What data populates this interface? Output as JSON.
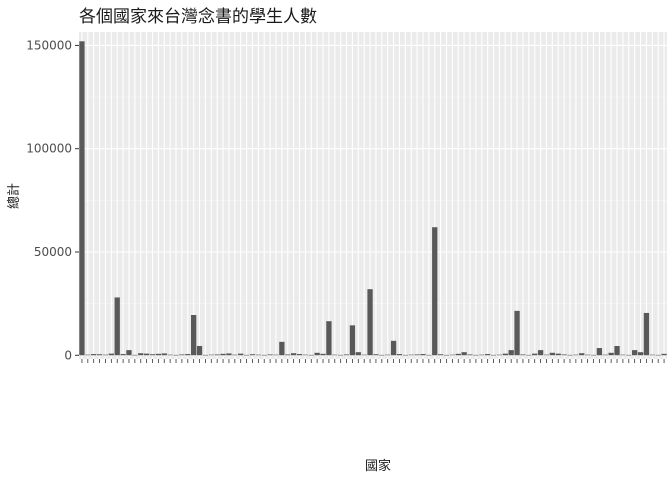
{
  "chart_data": {
    "type": "bar",
    "title": "各個國家來台灣念書的學生人數",
    "xlabel": "國家",
    "ylabel": "總計",
    "ylim": [
      -1800,
      156500
    ],
    "yticks": [
      0,
      50000,
      100000,
      150000
    ],
    "ytick_labels": [
      "0",
      "50000",
      "100000",
      "150000"
    ],
    "grid": true,
    "bar_color": "#595959",
    "panel_color": "#ebebeb",
    "values": [
      152000,
      300,
      600,
      500,
      300,
      800,
      28000,
      600,
      2500,
      200,
      1000,
      800,
      500,
      700,
      900,
      300,
      200,
      400,
      600,
      19500,
      4500,
      200,
      300,
      400,
      700,
      900,
      300,
      800,
      200,
      500,
      300,
      200,
      400,
      300,
      6500,
      400,
      1000,
      600,
      300,
      200,
      1200,
      700,
      16500,
      300,
      200,
      400,
      14500,
      1500,
      300,
      32000,
      500,
      200,
      300,
      7000,
      600,
      200,
      300,
      400,
      600,
      200,
      62000,
      500,
      200,
      300,
      700,
      1500,
      400,
      200,
      300,
      600,
      200,
      300,
      800,
      2500,
      21500,
      400,
      200,
      800,
      2500,
      300,
      1200,
      800,
      400,
      200,
      300,
      1000,
      300,
      200,
      3500,
      300,
      1200,
      4500,
      300,
      200,
      2500,
      1500,
      20500,
      300,
      200,
      700
    ]
  }
}
